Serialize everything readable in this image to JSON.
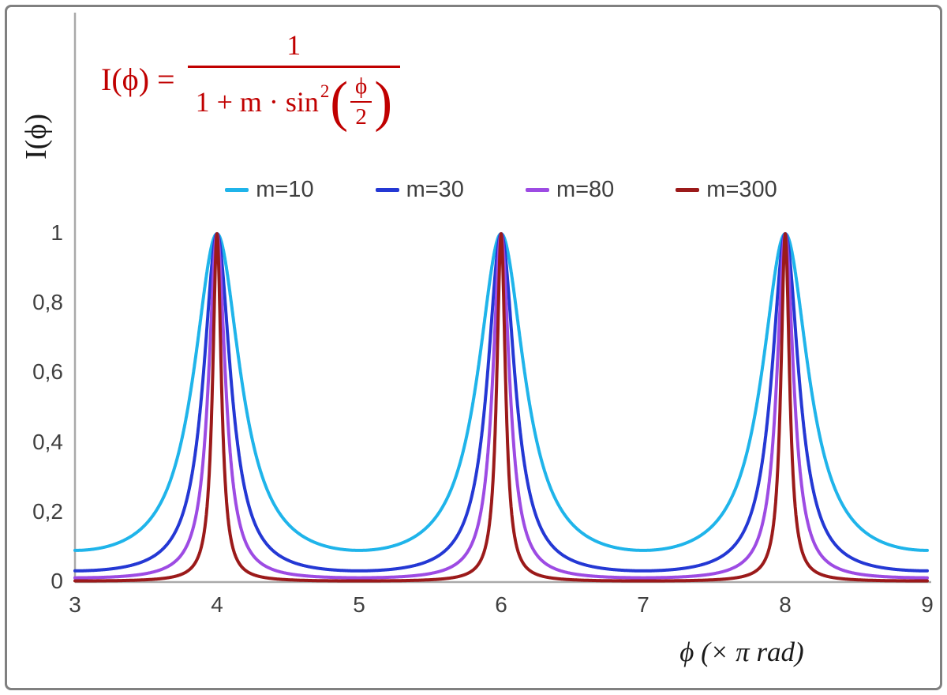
{
  "formula": {
    "lhs": "I(ϕ) =",
    "numerator": "1",
    "den_prefix": "1 + m · sin",
    "den_exponent": "2",
    "open_paren": "(",
    "close_paren": ")",
    "inner_numerator": "ϕ",
    "inner_denominator": "2",
    "color": "#c00000"
  },
  "chart_data": {
    "type": "line",
    "title": "",
    "formula_text": "I(ϕ) = 1 / (1 + m·sin²(ϕ/2))",
    "x": {
      "label": "ϕ  (× π rad)",
      "min": 3,
      "max": 9,
      "ticks": [
        3,
        4,
        5,
        6,
        7,
        8,
        9
      ],
      "units": "π rad"
    },
    "y": {
      "label": "I(ϕ)",
      "min": 0,
      "max": 1,
      "ticks": [
        {
          "value": 0,
          "label": "0"
        },
        {
          "value": 0.2,
          "label": "0,2"
        },
        {
          "value": 0.4,
          "label": "0,4"
        },
        {
          "value": 0.6,
          "label": "0,6"
        },
        {
          "value": 0.8,
          "label": "0,8"
        },
        {
          "value": 1,
          "label": "1"
        }
      ]
    },
    "series": [
      {
        "name": "m=10",
        "m": 10,
        "color": "#1fb4ea",
        "min_value": 0.0909,
        "peak_value": 1
      },
      {
        "name": "m=30",
        "m": 30,
        "color": "#2438d4",
        "min_value": 0.0323,
        "peak_value": 1
      },
      {
        "name": "m=80",
        "m": 80,
        "color": "#9d4be3",
        "min_value": 0.0123,
        "peak_value": 1
      },
      {
        "name": "m=300",
        "m": 300,
        "color": "#9b1a1a",
        "min_value": 0.0033,
        "peak_value": 1
      }
    ],
    "peaks": {
      "x": [
        4,
        6,
        8
      ],
      "value": 1
    },
    "legend_position": "top-center",
    "grid": false,
    "axis_color": "#a9a9a9",
    "tick_label_color": "#404040"
  }
}
